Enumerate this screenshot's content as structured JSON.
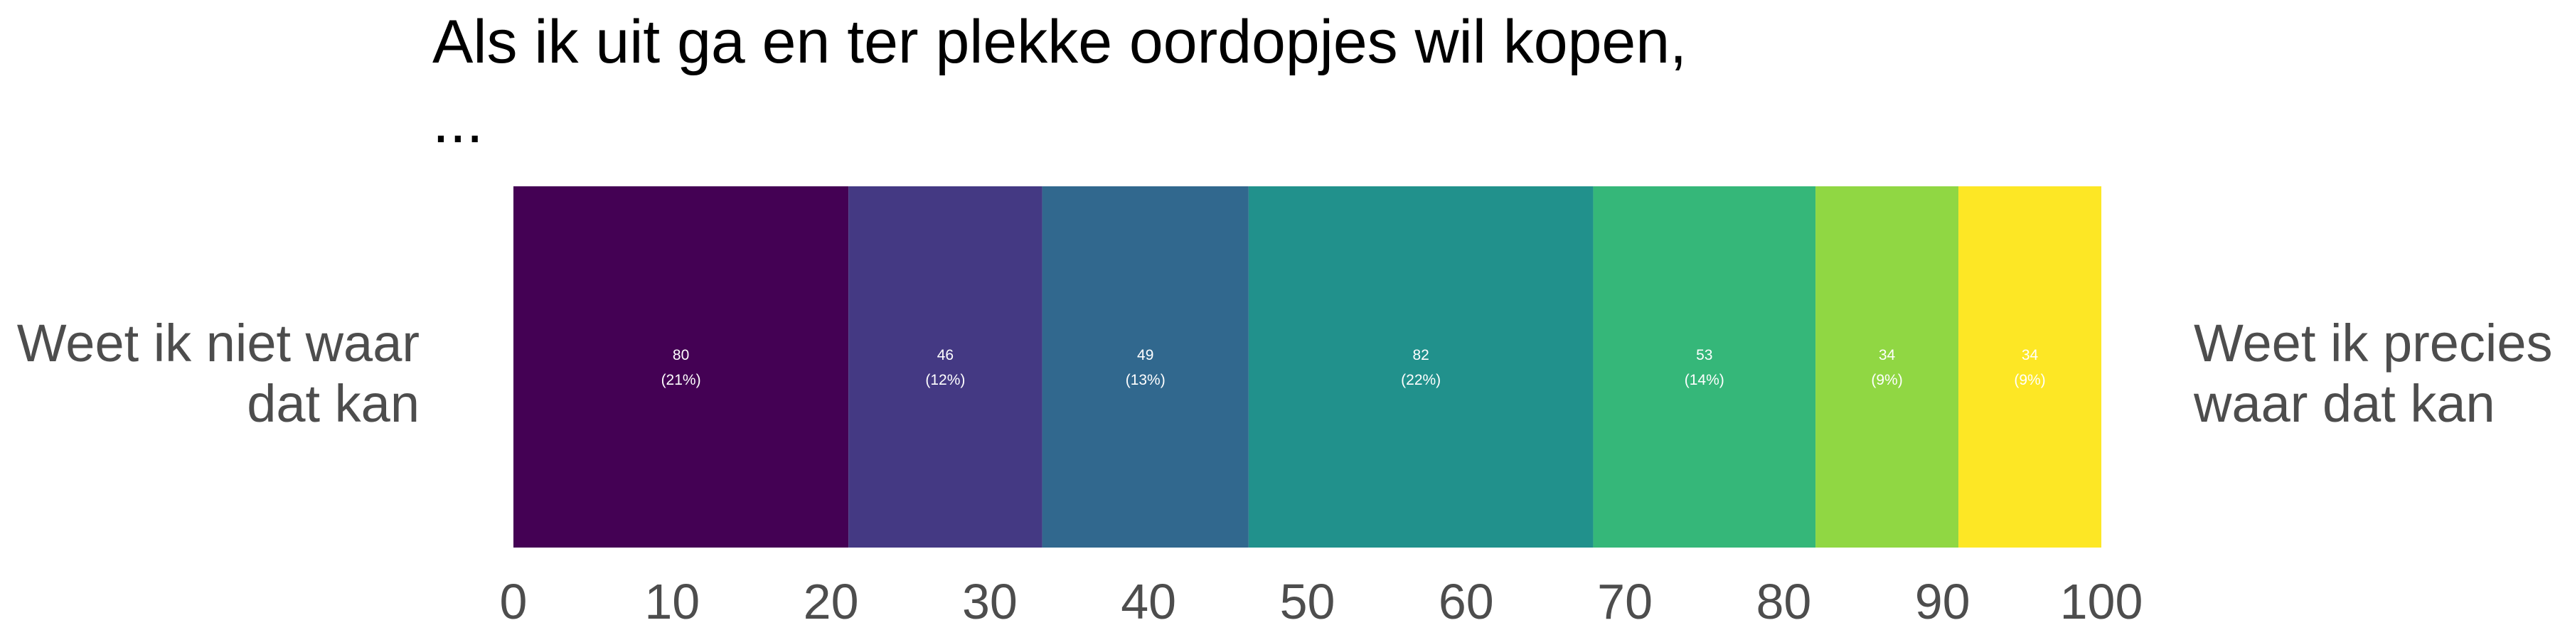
{
  "chart_data": {
    "type": "bar",
    "orientation": "horizontal-stacked",
    "title_lines": [
      "Als ik uit ga en ter plekke oordopjes wil kopen,",
      "..."
    ],
    "left_label_lines": [
      "Weet ik niet waar",
      "dat kan"
    ],
    "right_label_lines": [
      "Weet ik precies",
      "waar dat kan"
    ],
    "segments": [
      {
        "count": "80",
        "percent_label": "(21%)",
        "value": 21.1,
        "color": "#440154"
      },
      {
        "count": "46",
        "percent_label": "(12%)",
        "value": 12.2,
        "color": "#443983"
      },
      {
        "count": "49",
        "percent_label": "(13%)",
        "value": 13.0,
        "color": "#31688e"
      },
      {
        "count": "82",
        "percent_label": "(22%)",
        "value": 21.7,
        "color": "#21918c"
      },
      {
        "count": "53",
        "percent_label": "(14%)",
        "value": 14.0,
        "color": "#35b779"
      },
      {
        "count": "34",
        "percent_label": "(9%)",
        "value": 9.0,
        "color": "#90d743"
      },
      {
        "count": "34",
        "percent_label": "(9%)",
        "value": 9.0,
        "color": "#fde725"
      }
    ],
    "xlim": [
      0,
      100
    ],
    "x_ticks": [
      "0",
      "10",
      "20",
      "30",
      "40",
      "50",
      "60",
      "70",
      "80",
      "90",
      "100"
    ],
    "grid": false,
    "legend": "none"
  }
}
